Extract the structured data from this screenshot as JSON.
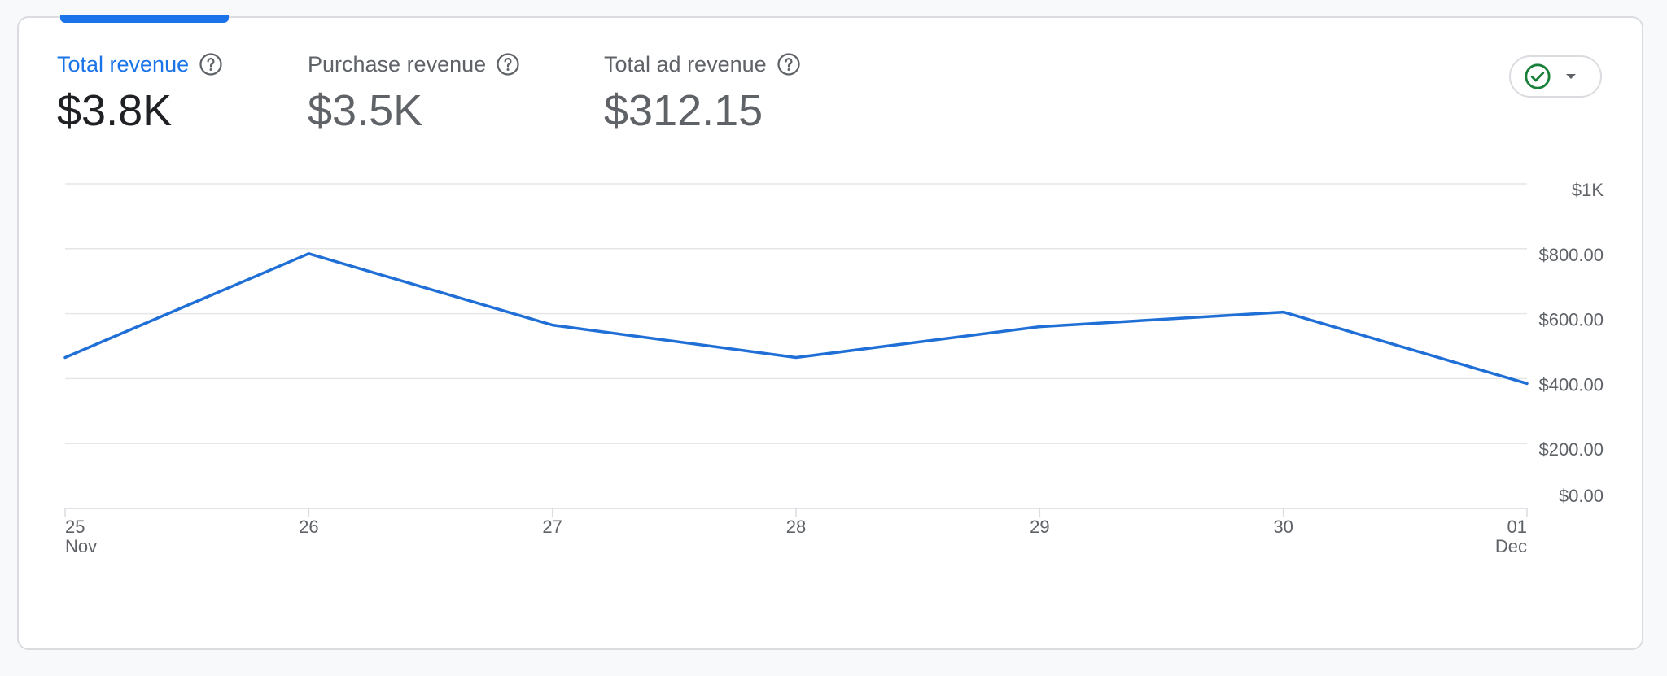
{
  "metrics": [
    {
      "label": "Total revenue",
      "value": "$3.8K",
      "active": true
    },
    {
      "label": "Purchase revenue",
      "value": "$3.5K",
      "active": false
    },
    {
      "label": "Total ad revenue",
      "value": "$312.15",
      "active": false
    }
  ],
  "status_button": {
    "icon": "check-circle-icon",
    "menu_icon": "caret-down-icon"
  },
  "colors": {
    "accent": "#1a73e8",
    "line": "#1f6fd6",
    "check": "#188038",
    "grid": "#e6e6e6"
  },
  "chart_data": {
    "type": "line",
    "x_ticks": [
      {
        "day": "25",
        "month": "Nov"
      },
      {
        "day": "26",
        "month": ""
      },
      {
        "day": "27",
        "month": ""
      },
      {
        "day": "28",
        "month": ""
      },
      {
        "day": "29",
        "month": ""
      },
      {
        "day": "30",
        "month": ""
      },
      {
        "day": "01",
        "month": "Dec"
      }
    ],
    "series": [
      {
        "values": [
          465,
          785,
          565,
          465,
          560,
          605,
          385
        ]
      }
    ],
    "y_ticks": [
      {
        "value": 0,
        "label": "$0.00"
      },
      {
        "value": 200,
        "label": "$200.00"
      },
      {
        "value": 400,
        "label": "$400.00"
      },
      {
        "value": 600,
        "label": "$600.00"
      },
      {
        "value": 800,
        "label": "$800.00"
      },
      {
        "value": 1000,
        "label": "$1K"
      }
    ],
    "ylim": [
      0,
      1000
    ],
    "grid": true
  }
}
